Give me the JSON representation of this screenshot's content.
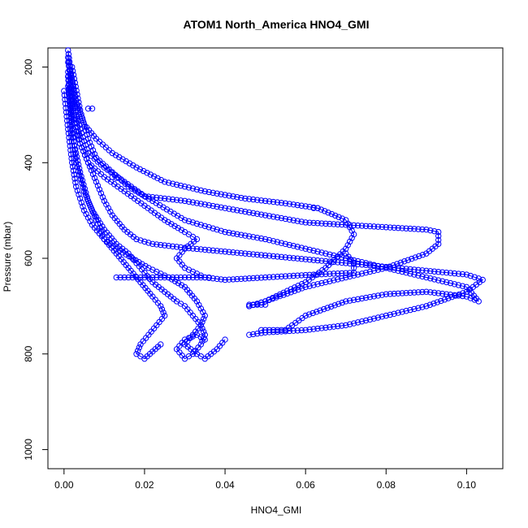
{
  "chart_data": {
    "type": "scatter",
    "title": "ATOM1 North_America HNO4_GMI",
    "xlabel": "HNO4_GMI",
    "ylabel": "Pressure (mbar)",
    "xlim": [
      -0.004,
      0.109
    ],
    "ylim": [
      1040,
      160
    ],
    "y_inverted": true,
    "x_ticks": [
      0.0,
      0.02,
      0.04,
      0.06,
      0.08,
      0.1
    ],
    "x_tick_labels": [
      "0.00",
      "0.02",
      "0.04",
      "0.06",
      "0.08",
      "0.10"
    ],
    "y_ticks": [
      200,
      400,
      600,
      800,
      1000
    ],
    "y_tick_labels": [
      "200",
      "400",
      "600",
      "800",
      "1000"
    ],
    "marker": "open-circle",
    "connect_points": true,
    "color": "#0000ff",
    "grid": false,
    "series": [
      {
        "x": [
          0.001,
          0.002,
          0.003,
          0.004,
          0.006,
          0.008,
          0.01,
          0.012,
          0.015,
          0.018,
          0.022,
          0.03,
          0.04,
          0.05,
          0.06,
          0.07,
          0.08,
          0.09,
          0.1,
          0.104,
          0.1,
          0.09,
          0.08,
          0.07,
          0.06,
          0.05,
          0.046
        ],
        "y": [
          165,
          230,
          300,
          360,
          400,
          440,
          480,
          510,
          540,
          560,
          570,
          578,
          586,
          594,
          602,
          610,
          618,
          626,
          634,
          645,
          670,
          700,
          720,
          740,
          750,
          755,
          760
        ]
      },
      {
        "x": [
          0.001,
          0.002,
          0.004,
          0.006,
          0.01,
          0.015,
          0.02,
          0.03,
          0.04,
          0.05,
          0.06,
          0.07,
          0.08,
          0.09,
          0.093,
          0.093,
          0.09,
          0.08,
          0.07,
          0.06,
          0.05,
          0.046
        ],
        "y": [
          180,
          260,
          330,
          380,
          410,
          440,
          470,
          480,
          495,
          510,
          525,
          530,
          535,
          540,
          545,
          570,
          590,
          620,
          640,
          660,
          690,
          700
        ]
      },
      {
        "x": [
          0.002,
          0.004,
          0.006,
          0.008,
          0.012,
          0.016,
          0.022,
          0.03,
          0.04,
          0.05,
          0.06,
          0.07,
          0.08,
          0.09,
          0.1,
          0.103,
          0.1,
          0.09,
          0.08,
          0.07,
          0.06,
          0.055
        ],
        "y": [
          200,
          290,
          350,
          390,
          420,
          450,
          480,
          520,
          545,
          560,
          580,
          600,
          620,
          640,
          660,
          690,
          680,
          670,
          675,
          690,
          720,
          750
        ]
      },
      {
        "x": [
          0.001,
          0.003,
          0.005,
          0.008,
          0.012,
          0.018,
          0.025,
          0.035,
          0.045,
          0.055,
          0.063,
          0.07,
          0.072,
          0.07,
          0.065,
          0.06,
          0.05,
          0.046
        ],
        "y": [
          190,
          270,
          320,
          350,
          380,
          410,
          440,
          460,
          475,
          485,
          495,
          520,
          550,
          580,
          620,
          650,
          690,
          700
        ]
      },
      {
        "x": [
          0.001,
          0.002,
          0.004,
          0.006,
          0.01,
          0.015,
          0.02,
          0.025,
          0.03,
          0.033,
          0.03,
          0.028,
          0.03,
          0.035,
          0.04,
          0.05,
          0.06,
          0.072,
          0.072,
          0.07
        ],
        "y": [
          210,
          300,
          360,
          400,
          430,
          460,
          490,
          520,
          545,
          560,
          580,
          600,
          620,
          640,
          645,
          640,
          635,
          630,
          610,
          590
        ]
      },
      {
        "x": [
          0.001,
          0.002,
          0.003,
          0.005,
          0.007,
          0.01,
          0.013,
          0.016,
          0.018,
          0.02,
          0.022,
          0.025,
          0.028,
          0.03,
          0.032,
          0.034,
          0.035,
          0.034,
          0.032,
          0.03,
          0.028,
          0.03,
          0.033,
          0.035
        ],
        "y": [
          220,
          320,
          400,
          460,
          500,
          540,
          570,
          590,
          610,
          630,
          650,
          670,
          690,
          700,
          720,
          740,
          760,
          780,
          800,
          810,
          790,
          770,
          760,
          770
        ]
      },
      {
        "x": [
          0.001,
          0.002,
          0.004,
          0.006,
          0.008,
          0.01,
          0.013,
          0.016,
          0.019,
          0.022,
          0.024,
          0.025,
          0.023,
          0.021,
          0.019,
          0.018,
          0.02,
          0.022,
          0.024
        ],
        "y": [
          240,
          340,
          420,
          480,
          520,
          560,
          590,
          620,
          650,
          680,
          700,
          720,
          740,
          760,
          780,
          800,
          810,
          795,
          780
        ]
      },
      {
        "x": [
          0.0,
          0.001,
          0.002,
          0.003,
          0.005,
          0.007,
          0.01,
          0.013,
          0.017,
          0.021,
          0.026,
          0.03,
          0.033,
          0.035,
          0.034,
          0.032,
          0.03,
          0.033,
          0.035,
          0.038,
          0.04
        ],
        "y": [
          250,
          330,
          400,
          450,
          500,
          530,
          560,
          580,
          600,
          620,
          640,
          660,
          690,
          720,
          740,
          760,
          780,
          800,
          810,
          790,
          770
        ]
      },
      {
        "x": [
          0.013,
          0.015,
          0.018,
          0.021,
          0.024,
          0.027,
          0.03,
          0.033,
          0.036
        ],
        "y": [
          640,
          640,
          640,
          640,
          640,
          640,
          640,
          640,
          640
        ]
      },
      {
        "x": [
          0.046,
          0.047,
          0.048,
          0.049,
          0.05
        ],
        "y": [
          697,
          697,
          697,
          697,
          697
        ]
      },
      {
        "x": [
          0.049,
          0.05,
          0.051,
          0.052,
          0.053,
          0.054,
          0.055
        ],
        "y": [
          750,
          750,
          750,
          750,
          750,
          750,
          750
        ]
      },
      {
        "x": [
          0.062,
          0.063
        ],
        "y": [
          495,
          495
        ]
      },
      {
        "x": [
          0.006,
          0.007
        ],
        "y": [
          287,
          287
        ]
      },
      {
        "x": [
          0.012,
          0.013
        ],
        "y": [
          430,
          432
        ]
      }
    ]
  }
}
